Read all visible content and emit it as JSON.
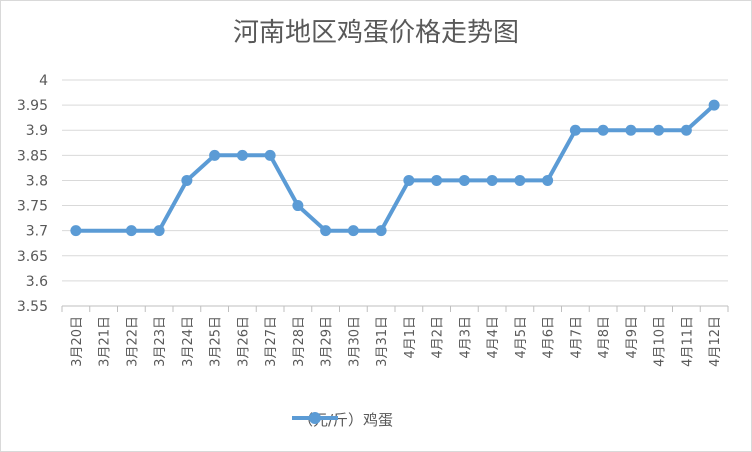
{
  "chart_data": {
    "type": "line",
    "title": "河南地区鸡蛋价格走势图",
    "xlabel": "",
    "ylabel": "",
    "ylim": [
      3.55,
      4
    ],
    "yticks": [
      "3.55",
      "3.6",
      "3.65",
      "3.7",
      "3.75",
      "3.8",
      "3.85",
      "3.9",
      "3.95",
      "4"
    ],
    "grid": true,
    "legend_position": "bottom",
    "categories": [
      "3月20日",
      "3月21日",
      "3月22日",
      "3月23日",
      "3月24日",
      "3月25日",
      "3月26日",
      "3月27日",
      "3月28日",
      "3月29日",
      "3月30日",
      "3月31日",
      "4月1日",
      "4月2日",
      "4月3日",
      "4月4日",
      "4月5日",
      "4月6日",
      "4月7日",
      "4月8日",
      "4月9日",
      "4月10日",
      "4月11日",
      "4月12日"
    ],
    "series": [
      {
        "name": "（元/斤）鸡蛋",
        "color": "#5b9bd5",
        "values": [
          3.7,
          null,
          3.7,
          3.7,
          3.8,
          3.85,
          3.85,
          3.85,
          3.75,
          3.7,
          3.7,
          3.7,
          3.8,
          3.8,
          3.8,
          3.8,
          3.8,
          3.8,
          3.9,
          3.9,
          3.9,
          3.9,
          3.9,
          3.95
        ]
      }
    ]
  }
}
